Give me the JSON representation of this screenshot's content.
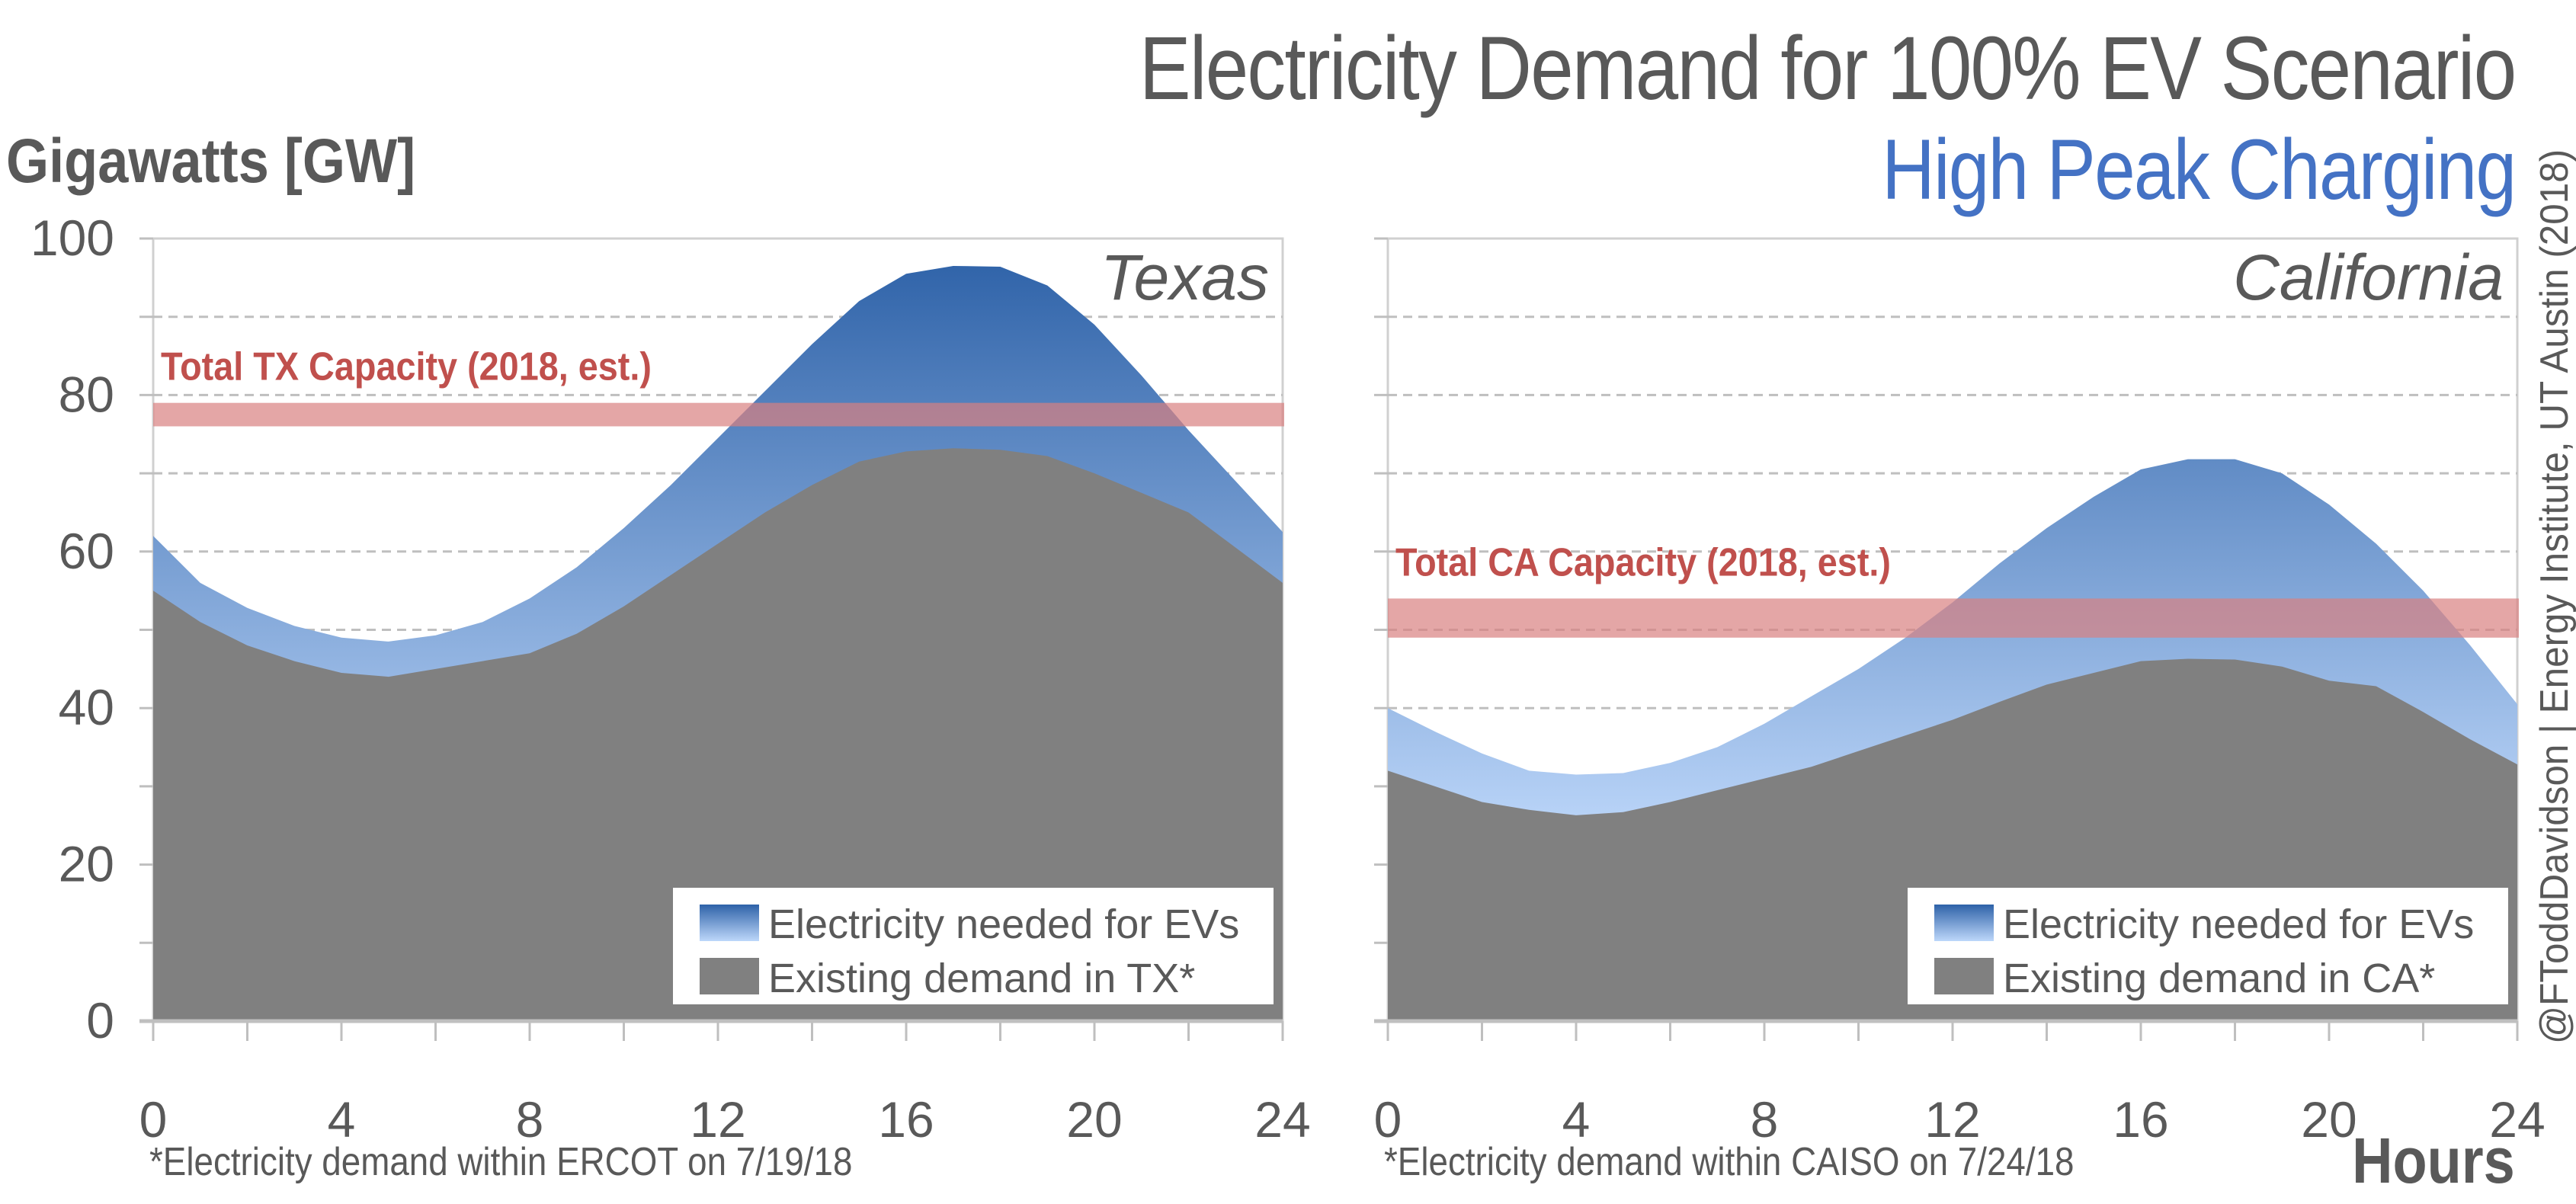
{
  "header": {
    "title": "Electricity Demand for 100% EV Scenario",
    "subtitle": "High Peak Charging",
    "y_axis_title": "Gigawatts [GW]",
    "x_axis_title": "Hours",
    "watermark": "@FToddDavidson | Energy Institute, UT Austin (2018)"
  },
  "colors": {
    "existing": "#808080",
    "ev_top": "#2E62A8",
    "ev_bottom": "#BDD7FA",
    "capacity": "#D98080",
    "capacity_label": "#C0504D",
    "subtitle": "#4472C4",
    "text": "#595959"
  },
  "chart_data": [
    {
      "type": "area",
      "panel": "Texas",
      "title": "Texas",
      "xlabel": "Hours",
      "ylabel": "Gigawatts [GW]",
      "xlim": [
        0,
        24
      ],
      "ylim": [
        0,
        100
      ],
      "x_ticks": [
        0,
        4,
        8,
        12,
        16,
        20,
        24
      ],
      "y_ticks": [
        0,
        20,
        40,
        60,
        80,
        100
      ],
      "grid": "dashed horizontal every 10",
      "legend_position": "bottom-right",
      "x": [
        0,
        1,
        2,
        3,
        4,
        5,
        6,
        7,
        8,
        9,
        10,
        11,
        12,
        13,
        14,
        15,
        16,
        17,
        18,
        19,
        20,
        21,
        22,
        23,
        24
      ],
      "series": [
        {
          "name": "Existing demand in TX*",
          "values": [
            55,
            51,
            48,
            46,
            44.5,
            44,
            45,
            46,
            47,
            49.5,
            53,
            57,
            61,
            65,
            68.5,
            71.5,
            72.8,
            73.2,
            73,
            72.2,
            70,
            67.5,
            65,
            60.5,
            56
          ]
        },
        {
          "name": "Electricity needed for EVs",
          "stacked_total": [
            62,
            56,
            52.8,
            50.5,
            49,
            48.5,
            49.3,
            51,
            54,
            58,
            63,
            68.5,
            74.5,
            80.5,
            86.5,
            92,
            95.5,
            96.5,
            96.4,
            94,
            89,
            82.5,
            75.5,
            69,
            62.5
          ]
        }
      ],
      "capacity_band": {
        "label": "Total TX Capacity (2018, est.)",
        "range": [
          76,
          79
        ]
      },
      "footnote": "*Electricity demand within ERCOT on 7/19/18"
    },
    {
      "type": "area",
      "panel": "California",
      "title": "California",
      "xlabel": "Hours",
      "ylabel": "Gigawatts [GW]",
      "xlim": [
        0,
        24
      ],
      "ylim": [
        0,
        100
      ],
      "x_ticks": [
        0,
        4,
        8,
        12,
        16,
        20,
        24
      ],
      "y_ticks": [
        0,
        20,
        40,
        60,
        80,
        100
      ],
      "grid": "dashed horizontal every 10",
      "legend_position": "bottom-right",
      "x": [
        0,
        1,
        2,
        3,
        4,
        5,
        6,
        7,
        8,
        9,
        10,
        11,
        12,
        13,
        14,
        15,
        16,
        17,
        18,
        19,
        20,
        21,
        22,
        23,
        24
      ],
      "series": [
        {
          "name": "Existing demand in CA*",
          "values": [
            32,
            30,
            28,
            27,
            26.3,
            26.7,
            28,
            29.5,
            31,
            32.5,
            34.5,
            36.5,
            38.5,
            40.8,
            43,
            44.5,
            46,
            46.3,
            46.2,
            45.3,
            43.5,
            42.8,
            39.5,
            36,
            32.8
          ]
        },
        {
          "name": "Electricity needed for EVs",
          "stacked_total": [
            40,
            37,
            34.2,
            32,
            31.5,
            31.7,
            33,
            35,
            38,
            41.5,
            45,
            49,
            53.5,
            58.5,
            63,
            67,
            70.5,
            71.8,
            71.8,
            70,
            66,
            61,
            55,
            48,
            40.5
          ]
        }
      ],
      "capacity_band": {
        "label": "Total CA Capacity (2018, est.)",
        "range": [
          49,
          54
        ]
      },
      "footnote": "*Electricity demand within CAISO on 7/24/18"
    }
  ]
}
